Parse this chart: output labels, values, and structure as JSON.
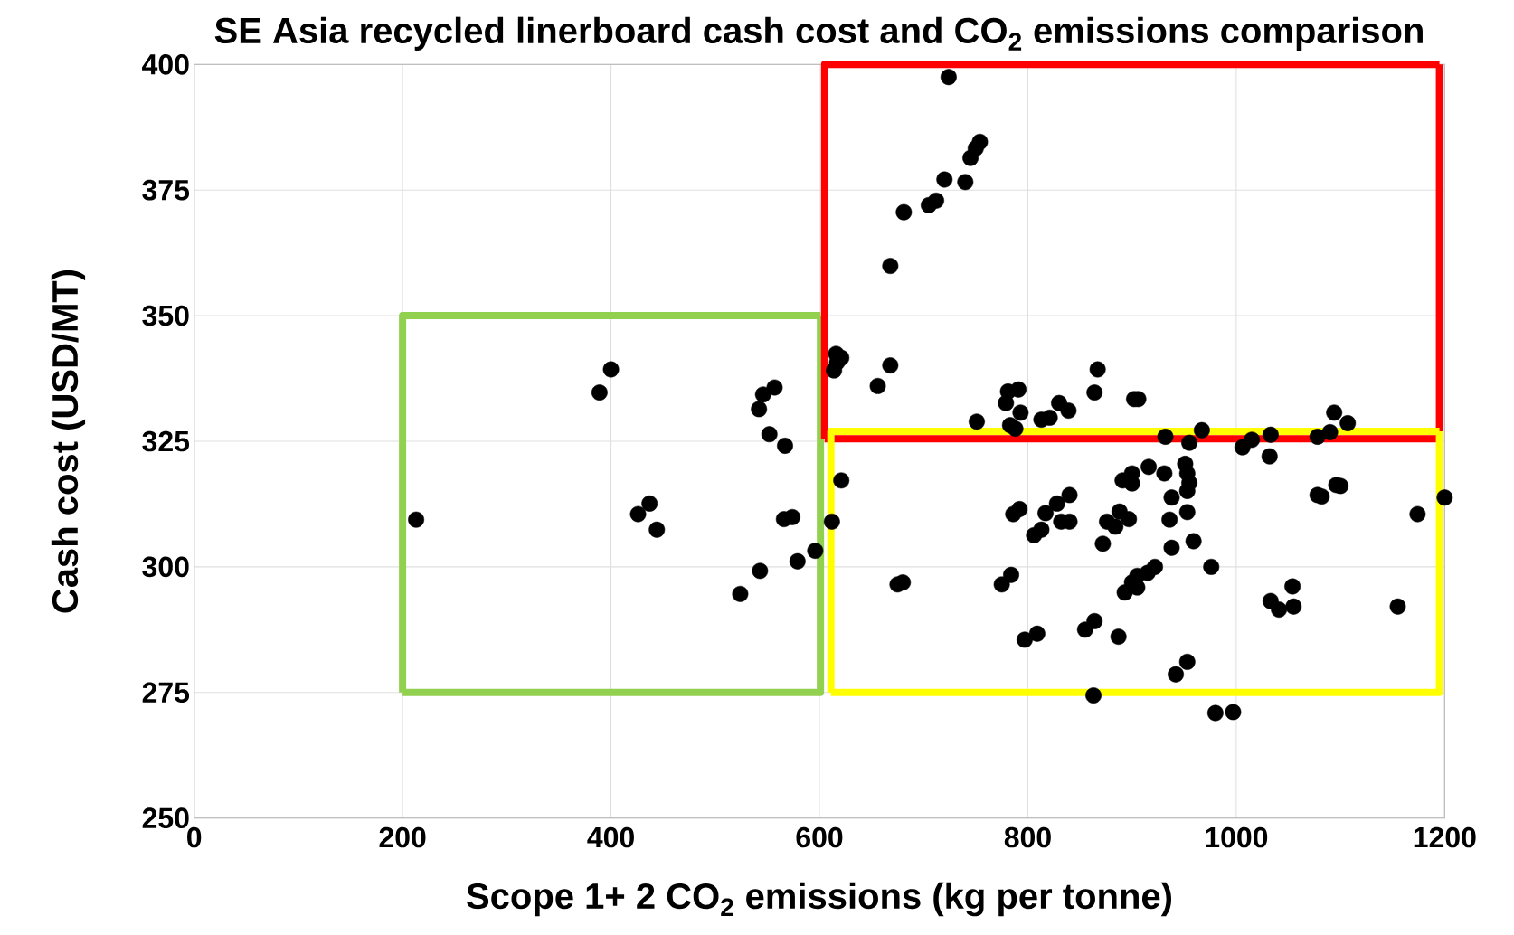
{
  "chart_data": {
    "type": "scatter",
    "title": "SE Asia recycled linerboard cash cost and CO$_{2}$ emissions comparison",
    "xlabel": "Scope 1+ 2 CO$_{2}$ emissions (kg per tonne)",
    "ylabel": "Cash cost (USD/MT)",
    "xlim": [
      0,
      1200
    ],
    "ylim": [
      250,
      400
    ],
    "xticks": [
      0,
      200,
      400,
      600,
      800,
      1000,
      1200
    ],
    "yticks": [
      250,
      275,
      300,
      325,
      350,
      375,
      400
    ],
    "grid": true,
    "series": [
      {
        "type": "line",
        "color": "#92d050",
        "marker": "none",
        "x": [
          200,
          601,
          601
        ],
        "values": [
          275,
          275,
          350
        ]
      },
      {
        "type": "line",
        "color": "#92d050",
        "marker": "none",
        "x": [
          200,
          200,
          601
        ],
        "values": [
          275,
          350,
          350
        ]
      },
      {
        "type": "line",
        "color": "#ff0000",
        "marker": "none",
        "x": [
          605,
          1195,
          1195
        ],
        "values": [
          325.5,
          325.5,
          400
        ]
      },
      {
        "type": "line",
        "color": "#ff0000",
        "marker": "none",
        "x": [
          605,
          605,
          1195
        ],
        "values": [
          325.5,
          400,
          400
        ]
      },
      {
        "type": "line",
        "color": "#ffff00",
        "marker": "none",
        "x": [
          611,
          1195,
          1195
        ],
        "values": [
          275,
          275,
          327
        ]
      },
      {
        "type": "line",
        "color": "#ffff00",
        "marker": "none",
        "x": [
          611,
          611,
          1195
        ],
        "values": [
          275,
          327,
          327
        ]
      },
      {
        "color": "#000000",
        "marker": "circle",
        "x": [
          213,
          389,
          400,
          426,
          437,
          444,
          524,
          543,
          542,
          546,
          557,
          552,
          567,
          566,
          574,
          579,
          596,
          612,
          616,
          617,
          621,
          614,
          621,
          668,
          681,
          705,
          712,
          720,
          724,
          740,
          745,
          750,
          754,
          656,
          668,
          675,
          680,
          751,
          779,
          781,
          791,
          783,
          793,
          813,
          821,
          830,
          839,
          864,
          867,
          902,
          906,
          786,
          792,
          806,
          813,
          817,
          828,
          832,
          840,
          840,
          872,
          876,
          888,
          884,
          897,
          891,
          900,
          900,
          916,
          931,
          938,
          936,
          953,
          951,
          953,
          955,
          953,
          959,
          938,
          976,
          922,
          915,
          905,
          900,
          893,
          905,
          775,
          784,
          797,
          809,
          855,
          864,
          887,
          942,
          953,
          980,
          997,
          863,
          932,
          967,
          955,
          1006,
          1015,
          1032,
          1033,
          1078,
          1096,
          1094,
          1107,
          1078,
          1090,
          1174,
          1200,
          1033,
          1041,
          1055,
          1054,
          1155,
          788,
          1082,
          1100
        ],
        "values": [
          309.4,
          334.7,
          339.3,
          310.5,
          312.6,
          307.4,
          294.6,
          299.2,
          331.4,
          334.3,
          335.7,
          326.4,
          324.1,
          309.5,
          309.9,
          301.1,
          303.2,
          309,
          342.4,
          340.7,
          341.6,
          339.1,
          317.2,
          359.9,
          370.6,
          372,
          372.9,
          377.1,
          397.5,
          376.6,
          381.4,
          383.3,
          384.6,
          336,
          340.1,
          296.5,
          296.9,
          328.9,
          332.6,
          334.9,
          335.3,
          328.2,
          330.7,
          329.3,
          329.7,
          332.6,
          331.1,
          334.7,
          339.3,
          333.4,
          333.4,
          310.5,
          311.5,
          306.3,
          307.4,
          310.7,
          312.6,
          309,
          314.3,
          309,
          304.6,
          309,
          311,
          308,
          309.5,
          317.2,
          318.6,
          316.6,
          319.9,
          318.6,
          313.8,
          309.4,
          315.1,
          320.5,
          318.6,
          316.7,
          310.9,
          305.1,
          303.8,
          300,
          300,
          298.8,
          298.2,
          296.9,
          294.9,
          295.9,
          296.5,
          298.4,
          285.5,
          286.7,
          287.5,
          289.2,
          286.1,
          278.6,
          281.1,
          270.9,
          271.1,
          274.4,
          325.9,
          327.2,
          324.7,
          323.8,
          325.3,
          322,
          326.3,
          314.3,
          316.3,
          330.7,
          328.6,
          325.9,
          326.8,
          310.5,
          313.8,
          293.2,
          291.5,
          292.1,
          296.1,
          292.1,
          327.5,
          314,
          316.1
        ]
      }
    ]
  }
}
